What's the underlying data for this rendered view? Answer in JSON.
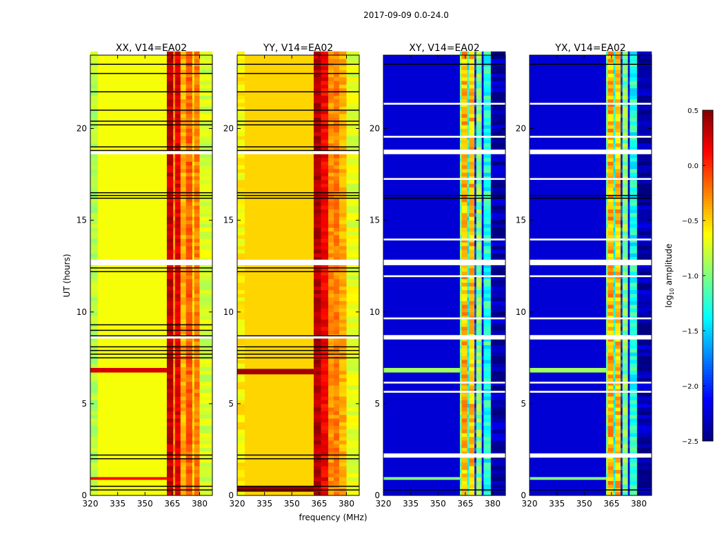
{
  "chart_data": {
    "type": "heatmap",
    "title": "2017-09-09 0.0-24.0",
    "xlabel": "frequency (MHz)",
    "ylabel": "UT (hours)",
    "xlim": [
      320,
      387
    ],
    "ylim": [
      0,
      24
    ],
    "xticks": [
      "320",
      "335",
      "350",
      "365",
      "380"
    ],
    "xtick_values": [
      320,
      335,
      350,
      365,
      380
    ],
    "yticks": [
      "0",
      "5",
      "10",
      "15",
      "20"
    ],
    "ytick_values": [
      0,
      5,
      10,
      15,
      20
    ],
    "colorbar": {
      "label_main": "log",
      "label_sub": "10",
      "label_rest": " amplitude",
      "range": [
        -2.5,
        0.5
      ],
      "ticks": [
        "0.5",
        "0.0",
        "−0.5",
        "−1.0",
        "−1.5",
        "−2.0",
        "−2.5"
      ],
      "tick_values": [
        0.5,
        0.0,
        -0.5,
        -1.0,
        -1.5,
        -2.0,
        -2.5
      ],
      "colormap": "jet"
    },
    "panels": [
      {
        "title": "XX, V14=EA02",
        "base": -0.65,
        "bands": [
          [
            320,
            324,
            -0.85
          ],
          [
            362,
            365.5,
            0.3
          ],
          [
            365.5,
            366.5,
            -0.3
          ],
          [
            366.5,
            369.5,
            0.2
          ],
          [
            369.5,
            372.5,
            -0.4
          ],
          [
            372.5,
            376,
            -0.15
          ],
          [
            376,
            377,
            -0.55
          ],
          [
            377,
            380,
            -0.25
          ],
          [
            380,
            387,
            -0.75
          ]
        ],
        "events": [
          [
            6.7,
            6.95,
            0.25
          ],
          [
            0.85,
            1.0,
            0.1
          ]
        ],
        "black_lines": [
          0.3,
          0.5,
          2.0,
          2.2,
          7.5,
          7.7,
          7.9,
          8.1,
          8.7,
          9.0,
          9.3,
          12.2,
          12.4,
          16.2,
          16.35,
          16.5,
          18.8,
          19.0,
          20.2,
          20.4,
          21.0,
          22.0,
          23.0,
          23.5
        ],
        "white_gaps": [
          [
            12.55,
            12.85
          ],
          [
            8.55,
            8.72
          ],
          [
            18.6,
            18.8
          ]
        ]
      },
      {
        "title": "YY, V14=EA02",
        "base": -0.5,
        "bands": [
          [
            320,
            324,
            -0.6
          ],
          [
            362,
            366,
            0.35
          ],
          [
            366,
            370,
            0.15
          ],
          [
            370,
            373,
            -0.3
          ],
          [
            373,
            376,
            -0.25
          ],
          [
            376,
            380,
            -0.4
          ],
          [
            380,
            387,
            -0.7
          ]
        ],
        "events": [
          [
            6.6,
            6.9,
            0.4
          ],
          [
            0.2,
            0.5,
            0.45
          ]
        ],
        "black_lines": [
          0.3,
          0.5,
          2.0,
          2.2,
          7.5,
          7.7,
          7.9,
          8.1,
          8.7,
          12.2,
          12.4,
          16.2,
          16.35,
          16.5,
          18.8,
          19.0,
          20.2,
          20.4,
          21.0,
          22.0,
          23.0,
          23.5
        ],
        "white_gaps": [
          [
            12.55,
            12.85
          ],
          [
            8.55,
            8.72
          ],
          [
            18.6,
            18.8
          ]
        ]
      },
      {
        "title": "XY, V14=EA02",
        "base": -2.25,
        "bands": [
          [
            362,
            363,
            -1.0
          ],
          [
            363,
            366,
            -0.4
          ],
          [
            366,
            367,
            -1.3
          ],
          [
            367,
            370,
            -0.45
          ],
          [
            370,
            371,
            -2.0
          ],
          [
            371,
            374,
            -1.0
          ],
          [
            374,
            375,
            -2.2
          ],
          [
            375,
            379,
            -1.3
          ],
          [
            379,
            387,
            -2.4
          ]
        ],
        "events": [
          [
            6.7,
            6.95,
            -0.9
          ],
          [
            0.85,
            1.0,
            -1.0
          ]
        ],
        "black_lines": [
          0.3,
          16.2,
          16.35,
          23.5
        ],
        "white_gaps": [
          [
            2.06,
            2.29
          ],
          [
            8.5,
            8.74
          ],
          [
            12.55,
            12.85
          ],
          [
            18.6,
            18.85
          ],
          [
            5.6,
            5.7
          ],
          [
            6.1,
            6.2
          ],
          [
            9.6,
            9.7
          ],
          [
            11.9,
            12.0
          ],
          [
            13.9,
            14.0
          ],
          [
            17.2,
            17.3
          ],
          [
            19.5,
            19.6
          ],
          [
            21.3,
            21.4
          ]
        ]
      },
      {
        "title": "YX, V14=EA02",
        "base": -2.25,
        "bands": [
          [
            362,
            363,
            -1.0
          ],
          [
            363,
            366,
            -0.4
          ],
          [
            366,
            367,
            -1.3
          ],
          [
            367,
            370,
            -0.45
          ],
          [
            370,
            371,
            -2.0
          ],
          [
            371,
            374,
            -1.0
          ],
          [
            374,
            375,
            -2.2
          ],
          [
            375,
            379,
            -1.3
          ],
          [
            379,
            387,
            -2.4
          ]
        ],
        "events": [
          [
            6.7,
            6.95,
            -0.9
          ],
          [
            0.85,
            1.0,
            -1.0
          ]
        ],
        "black_lines": [
          0.3,
          16.2,
          16.35,
          23.5
        ],
        "white_gaps": [
          [
            2.06,
            2.29
          ],
          [
            8.5,
            8.74
          ],
          [
            12.55,
            12.85
          ],
          [
            18.6,
            18.85
          ],
          [
            5.6,
            5.7
          ],
          [
            6.1,
            6.2
          ],
          [
            9.6,
            9.7
          ],
          [
            11.9,
            12.0
          ],
          [
            13.9,
            14.0
          ],
          [
            17.2,
            17.3
          ],
          [
            19.5,
            19.6
          ],
          [
            21.3,
            21.4
          ]
        ]
      }
    ]
  }
}
